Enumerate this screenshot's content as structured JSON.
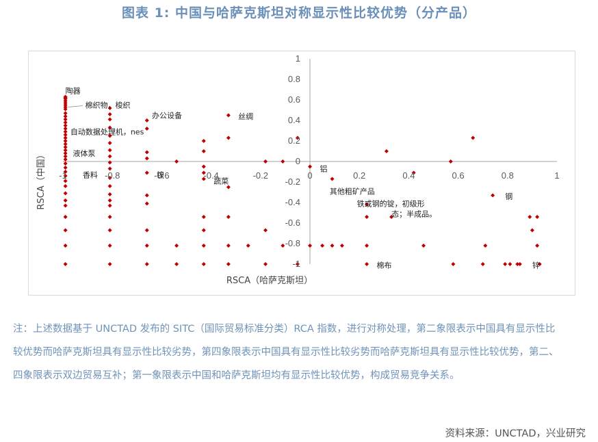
{
  "figure": {
    "title": "图表 1:   中国与哈萨克斯坦对称显示性比较优势（分产品）",
    "note": "注：上述数据基于 UNCTAD 发布的 SITC（国际贸易标准分类）RCA 指数，进行对称处理，第二象限表示中国具有显示性比较优势而哈萨克斯坦具有显示性比较劣势，第四象限表示中国具有显示性比较劣势而哈萨克斯坦具有显示性比较优势，第二、四象限表示双边贸易互补；第一象限表示中国和哈萨克斯坦均有显示性比较优势，构成贸易竞争关系。",
    "source": "资料来源：UNCTAD，兴业研究"
  },
  "colors": {
    "marker": "#c00000",
    "title": "#6a8fb8",
    "axis": "#a6a6a6",
    "note": "#6f93b9"
  },
  "chart_data": {
    "type": "scatter",
    "xlabel": "RSCA（哈萨克斯坦）",
    "ylabel": "RSCA（中国）",
    "xlim": [
      -1,
      1
    ],
    "ylim": [
      -1,
      1
    ],
    "x_ticks": [
      "-1",
      "-0.8",
      "-0.6",
      "-0.4",
      "-0.2",
      "0",
      "0.2",
      "0.4",
      "0.6",
      "0.8",
      "1"
    ],
    "y_ticks": [
      "1",
      "0.8",
      "0.6",
      "0.4",
      "0.2",
      "0",
      "-0.2",
      "-0.4",
      "-0.6",
      "-0.8",
      "-1"
    ],
    "grid": false,
    "legend": "none",
    "annotations": [
      {
        "text": "陶器",
        "x": -0.99,
        "y": 0.69
      },
      {
        "text": "棉织物，梭织",
        "x": -0.91,
        "y": 0.55
      },
      {
        "text": "办公设备",
        "x": -0.64,
        "y": 0.45
      },
      {
        "text": "丝绸",
        "x": -0.29,
        "y": 0.44
      },
      {
        "text": "自动数据处理机，nes",
        "x": -0.97,
        "y": 0.29
      },
      {
        "text": "液体泵",
        "x": -0.96,
        "y": 0.08
      },
      {
        "text": "香料",
        "x": -0.92,
        "y": -0.13
      },
      {
        "text": "镍",
        "x": -0.62,
        "y": -0.13
      },
      {
        "text": "蔬菜",
        "x": -0.39,
        "y": -0.19
      },
      {
        "text": "铝",
        "x": 0.04,
        "y": -0.07
      },
      {
        "text": "其他粗矿产品",
        "x": 0.08,
        "y": -0.29
      },
      {
        "text": "铁或钢的锭，初级形",
        "x": 0.19,
        "y": -0.41
      },
      {
        "text": "态；半成品。",
        "x": 0.33,
        "y": -0.51
      },
      {
        "text": "钢",
        "x": 0.79,
        "y": -0.34
      },
      {
        "text": "棉布",
        "x": 0.27,
        "y": -1.01
      },
      {
        "text": "锌",
        "x": 0.9,
        "y": -1.01
      }
    ],
    "series": [
      {
        "points": [
          [
            -0.99,
            0.63
          ],
          [
            -0.99,
            0.62
          ],
          [
            -0.99,
            0.61
          ],
          [
            -0.99,
            0.59
          ],
          [
            -0.99,
            0.57
          ],
          [
            -0.99,
            0.55
          ],
          [
            -0.99,
            0.53
          ],
          [
            -0.99,
            0.51
          ],
          [
            -0.99,
            0.47
          ],
          [
            -0.99,
            0.44
          ],
          [
            -0.99,
            0.41
          ],
          [
            -0.99,
            0.38
          ],
          [
            -0.99,
            0.35
          ],
          [
            -0.99,
            0.32
          ],
          [
            -0.99,
            0.29
          ],
          [
            -0.99,
            0.26
          ],
          [
            -0.99,
            0.23
          ],
          [
            -0.99,
            0.2
          ],
          [
            -0.99,
            0.17
          ],
          [
            -0.99,
            0.14
          ],
          [
            -0.99,
            0.11
          ],
          [
            -0.99,
            0.08
          ],
          [
            -0.99,
            0.05
          ],
          [
            -0.99,
            0.02
          ],
          [
            -0.99,
            -0.02
          ],
          [
            -0.99,
            -0.06
          ],
          [
            -0.99,
            -0.1
          ],
          [
            -0.99,
            -0.14
          ],
          [
            -0.99,
            -0.19
          ],
          [
            -0.99,
            -0.24
          ],
          [
            -0.99,
            -0.31
          ],
          [
            -0.99,
            -0.38
          ],
          [
            -0.99,
            -0.43
          ],
          [
            -0.99,
            -0.54
          ],
          [
            -0.99,
            -0.67
          ],
          [
            -0.99,
            -0.82
          ],
          [
            -0.99,
            -1.0
          ],
          [
            -0.81,
            0.52
          ],
          [
            -0.81,
            0.46
          ],
          [
            -0.81,
            0.41
          ],
          [
            -0.81,
            0.33
          ],
          [
            -0.81,
            0.25
          ],
          [
            -0.81,
            0.18
          ],
          [
            -0.81,
            0.11
          ],
          [
            -0.81,
            0.05
          ],
          [
            -0.81,
            -0.01
          ],
          [
            -0.81,
            -0.07
          ],
          [
            -0.81,
            -0.16
          ],
          [
            -0.81,
            -0.24
          ],
          [
            -0.81,
            -0.32
          ],
          [
            -0.81,
            -0.38
          ],
          [
            -0.81,
            -0.43
          ],
          [
            -0.81,
            -0.54
          ],
          [
            -0.81,
            -0.67
          ],
          [
            -0.81,
            -0.82
          ],
          [
            -0.81,
            -1.0
          ],
          [
            -0.66,
            0.4
          ],
          [
            -0.66,
            0.32
          ],
          [
            -0.66,
            0.09
          ],
          [
            -0.66,
            0.03
          ],
          [
            -0.66,
            -0.11
          ],
          [
            -0.66,
            -0.33
          ],
          [
            -0.66,
            -0.41
          ],
          [
            -0.66,
            -0.67
          ],
          [
            -0.66,
            -0.82
          ],
          [
            -0.66,
            -1.0
          ],
          [
            -0.54,
            0.0
          ],
          [
            -0.54,
            -0.82
          ],
          [
            -0.54,
            -1.0
          ],
          [
            -0.43,
            0.2
          ],
          [
            -0.43,
            0.1
          ],
          [
            -0.43,
            -0.05
          ],
          [
            -0.43,
            -0.11
          ],
          [
            -0.43,
            -0.17
          ],
          [
            -0.43,
            -0.54
          ],
          [
            -0.43,
            -0.67
          ],
          [
            -0.43,
            -0.82
          ],
          [
            -0.43,
            -1.0
          ],
          [
            -0.33,
            0.45
          ],
          [
            -0.33,
            0.23
          ],
          [
            -0.33,
            -0.25
          ],
          [
            -0.33,
            -0.54
          ],
          [
            -0.33,
            -0.82
          ],
          [
            -0.33,
            -1.0
          ],
          [
            -0.25,
            -0.82
          ],
          [
            -0.18,
            0.0
          ],
          [
            -0.18,
            -0.67
          ],
          [
            -0.18,
            -1.0
          ],
          [
            -0.11,
            0.0
          ],
          [
            -0.11,
            -0.82
          ],
          [
            -0.05,
            0.23
          ],
          [
            -0.05,
            -1.0
          ],
          [
            0.0,
            -0.05
          ],
          [
            0.0,
            -0.82
          ],
          [
            0.05,
            -0.82
          ],
          [
            0.09,
            -0.17
          ],
          [
            0.09,
            -0.82
          ],
          [
            0.13,
            -0.82
          ],
          [
            0.23,
            -0.42
          ],
          [
            0.23,
            -0.54
          ],
          [
            0.23,
            -0.82
          ],
          [
            0.23,
            -1.0
          ],
          [
            0.31,
            0.1
          ],
          [
            0.33,
            -0.54
          ],
          [
            0.42,
            -0.11
          ],
          [
            0.46,
            -0.82
          ],
          [
            0.57,
            0.0
          ],
          [
            0.58,
            -1.0
          ],
          [
            0.66,
            0.23
          ],
          [
            0.7,
            -1.0
          ],
          [
            0.71,
            -0.82
          ],
          [
            0.74,
            -0.33
          ],
          [
            0.79,
            -1.0
          ],
          [
            0.81,
            -1.0
          ],
          [
            0.84,
            -1.0
          ],
          [
            0.85,
            -1.0
          ],
          [
            0.89,
            -0.54
          ],
          [
            0.9,
            -0.67
          ],
          [
            0.92,
            -0.54
          ],
          [
            0.92,
            -0.82
          ],
          [
            0.93,
            -1.0
          ]
        ]
      }
    ]
  }
}
